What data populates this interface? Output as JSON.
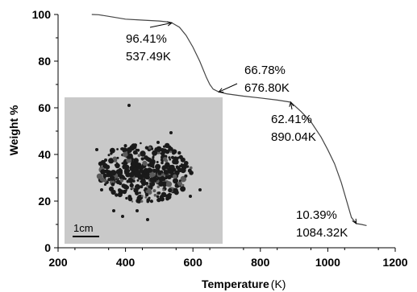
{
  "chart_data": {
    "type": "line",
    "xlabel": "Temperature",
    "xlabel_unit": "(K)",
    "ylabel": "Weight %",
    "xlim": [
      200,
      1200
    ],
    "ylim": [
      0,
      100
    ],
    "xticks": [
      200,
      400,
      600,
      800,
      1000,
      1200
    ],
    "yticks": [
      0,
      20,
      40,
      60,
      80,
      100
    ],
    "grid": false,
    "series": [
      {
        "x": [
          300,
          320,
          350,
          400,
          450,
          500,
          520,
          537.49,
          560,
          580,
          600,
          620,
          640,
          650,
          660,
          676.8,
          700,
          750,
          800,
          850,
          890.04,
          920,
          950,
          980,
          1000,
          1020,
          1040,
          1060,
          1070,
          1084.32,
          1100,
          1115
        ],
        "y": [
          100,
          99.9,
          99.2,
          98.0,
          97.6,
          97.2,
          96.9,
          96.41,
          94.5,
          91.0,
          86.0,
          80.0,
          73.0,
          70.0,
          68.0,
          66.78,
          66.0,
          65.0,
          64.2,
          63.3,
          62.41,
          58.5,
          54.0,
          47.5,
          42.0,
          36.0,
          28.0,
          18.0,
          13.0,
          10.39,
          10.0,
          9.5
        ]
      }
    ],
    "annotations": [
      {
        "lines": [
          "96.41%",
          "537.49K"
        ],
        "x": 537.49,
        "y": 96.41
      },
      {
        "lines": [
          "66.78%",
          "676.80K"
        ],
        "x": 676.8,
        "y": 66.78
      },
      {
        "lines": [
          "62.41%",
          "890.04K"
        ],
        "x": 890.04,
        "y": 62.41
      },
      {
        "lines": [
          "10.39%",
          "1084.32K"
        ],
        "x": 1084.32,
        "y": 10.39
      }
    ]
  },
  "inset": {
    "scale_label": "1cm"
  }
}
